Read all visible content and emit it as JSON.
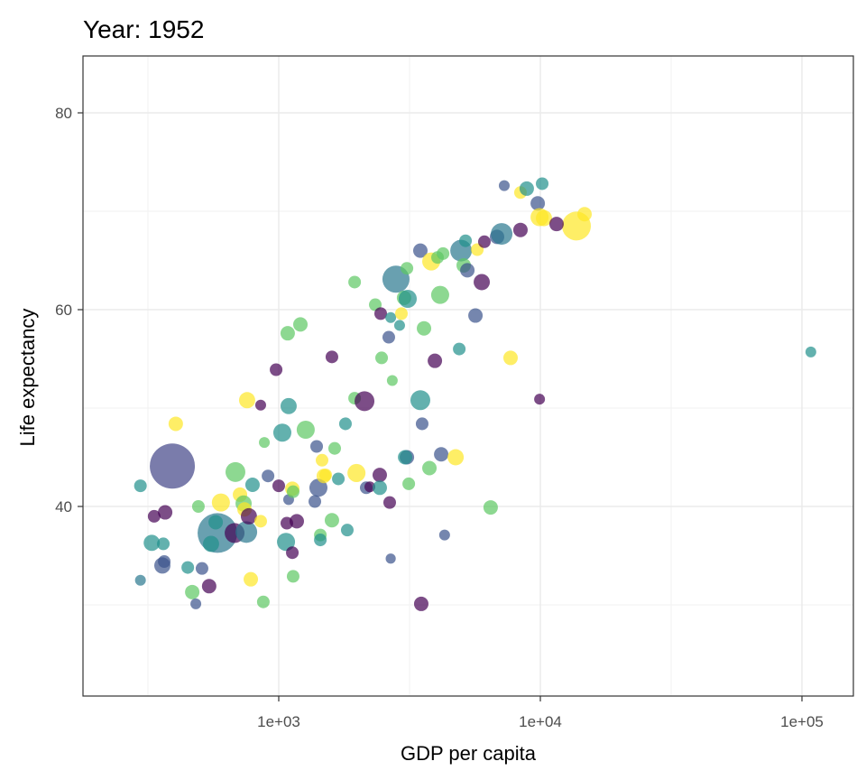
{
  "chart_data": {
    "type": "scatter",
    "title": "Year: 1952",
    "xlabel": "GDP per capita",
    "ylabel": "Life expectancy",
    "x_scale": "log10",
    "xlim": [
      180,
      160000
    ],
    "ylim": [
      25,
      85
    ],
    "x_ticks": [
      {
        "value": 1000,
        "label": "1e+03"
      },
      {
        "value": 10000,
        "label": "1e+04"
      },
      {
        "value": 100000,
        "label": "1e+05"
      }
    ],
    "y_ticks": [
      {
        "value": 40,
        "label": "40"
      },
      {
        "value": 60,
        "label": "60"
      },
      {
        "value": 80,
        "label": "80"
      }
    ],
    "grid": true,
    "legend": "none",
    "point_alpha": 0.7,
    "palette": {
      "P": "#440154",
      "I": "#414487",
      "B": "#3b528b",
      "C": "#2a788e",
      "T": "#21908c",
      "G": "#5dc863",
      "Y": "#fde725"
    },
    "point_fields": [
      "gdp_per_capita",
      "life_expectancy",
      "pop_millions",
      "color"
    ],
    "points": [
      [
        392,
        44.1,
        556,
        "I"
      ],
      [
        583,
        37.3,
        402,
        "C"
      ],
      [
        2806,
        63.1,
        139,
        "C"
      ],
      [
        13740,
        68.5,
        168,
        "Y"
      ],
      [
        296,
        42.1,
        5.6,
        "T"
      ],
      [
        296,
        32.5,
        1.4,
        "C"
      ],
      [
        334,
        39.0,
        5.6,
        "P"
      ],
      [
        368,
        39.4,
        12.5,
        "P"
      ],
      [
        327,
        36.3,
        22,
        "T"
      ],
      [
        362,
        36.2,
        5.6,
        "T"
      ],
      [
        365,
        34.4,
        5.6,
        "B"
      ],
      [
        359,
        34.0,
        22,
        "B"
      ],
      [
        404,
        48.4,
        12.5,
        "Y"
      ],
      [
        449,
        33.8,
        5.6,
        "T"
      ],
      [
        467,
        31.3,
        12.5,
        "G"
      ],
      [
        482,
        30.1,
        1.4,
        "B"
      ],
      [
        493,
        40.0,
        5.6,
        "G"
      ],
      [
        509,
        33.7,
        5.6,
        "B"
      ],
      [
        542,
        31.9,
        12.5,
        "P"
      ],
      [
        551,
        36.2,
        22,
        "T"
      ],
      [
        574,
        38.4,
        12.5,
        "T"
      ],
      [
        601,
        40.4,
        35,
        "Y"
      ],
      [
        683,
        43.5,
        50,
        "G"
      ],
      [
        678,
        37.3,
        50,
        "P"
      ],
      [
        752,
        37.4,
        68,
        "C"
      ],
      [
        711,
        41.2,
        12.5,
        "Y"
      ],
      [
        734,
        40.3,
        22,
        "G"
      ],
      [
        740,
        39.7,
        12.5,
        "Y"
      ],
      [
        769,
        39.0,
        22,
        "P"
      ],
      [
        757,
        50.8,
        22,
        "Y"
      ],
      [
        794,
        42.2,
        12.5,
        "T"
      ],
      [
        782,
        32.6,
        12.5,
        "Y"
      ],
      [
        853,
        50.3,
        1.4,
        "P"
      ],
      [
        853,
        38.5,
        5.6,
        "Y"
      ],
      [
        873,
        30.3,
        5.6,
        "G"
      ],
      [
        881,
        46.5,
        1.4,
        "G"
      ],
      [
        910,
        43.1,
        5.6,
        "B"
      ],
      [
        977,
        53.9,
        5.6,
        "P"
      ],
      [
        1000,
        42.1,
        5.6,
        "P"
      ],
      [
        1032,
        47.5,
        35,
        "T"
      ],
      [
        1091,
        50.2,
        22,
        "T"
      ],
      [
        1074,
        38.3,
        5.6,
        "P"
      ],
      [
        1066,
        36.4,
        35,
        "T"
      ],
      [
        1091,
        40.7,
        1.4,
        "B"
      ],
      [
        1127,
        41.8,
        12.5,
        "Y"
      ],
      [
        1135,
        41.5,
        5.6,
        "G"
      ],
      [
        1127,
        35.3,
        5.6,
        "P"
      ],
      [
        1172,
        38.5,
        12.5,
        "P"
      ],
      [
        1135,
        32.9,
        5.6,
        "G"
      ],
      [
        1082,
        57.6,
        12.5,
        "G"
      ],
      [
        1210,
        58.5,
        12.5,
        "G"
      ],
      [
        1268,
        47.8,
        35,
        "G"
      ],
      [
        1396,
        46.1,
        5.6,
        "B"
      ],
      [
        1374,
        40.5,
        5.6,
        "B"
      ],
      [
        1418,
        41.9,
        35,
        "B"
      ],
      [
        1442,
        37.1,
        5.6,
        "G"
      ],
      [
        1442,
        36.6,
        5.6,
        "T"
      ],
      [
        1487,
        43.1,
        12.5,
        "Y"
      ],
      [
        1464,
        44.7,
        5.6,
        "Y"
      ],
      [
        1511,
        43.2,
        5.6,
        "Y"
      ],
      [
        1597,
        55.2,
        5.6,
        "P"
      ],
      [
        1597,
        38.6,
        12.5,
        "G"
      ],
      [
        1636,
        45.9,
        5.6,
        "G"
      ],
      [
        1690,
        42.8,
        5.6,
        "T"
      ],
      [
        1799,
        48.4,
        5.6,
        "T"
      ],
      [
        1828,
        37.6,
        5.6,
        "T"
      ],
      [
        1950,
        62.8,
        5.6,
        "G"
      ],
      [
        1950,
        51.0,
        5.6,
        "G"
      ],
      [
        1982,
        43.4,
        35,
        "Y"
      ],
      [
        2127,
        50.7,
        50,
        "P"
      ],
      [
        2160,
        41.9,
        5.6,
        "B"
      ],
      [
        2230,
        42.0,
        1.4,
        "P"
      ],
      [
        2339,
        60.5,
        5.6,
        "G"
      ],
      [
        2453,
        59.6,
        5.6,
        "P"
      ],
      [
        2433,
        43.2,
        12.5,
        "P"
      ],
      [
        2433,
        41.9,
        12.5,
        "T"
      ],
      [
        2473,
        55.1,
        5.6,
        "G"
      ],
      [
        2634,
        57.2,
        5.6,
        "B"
      ],
      [
        2655,
        40.4,
        5.6,
        "P"
      ],
      [
        2679,
        34.7,
        0.5,
        "B"
      ],
      [
        2679,
        59.2,
        1.4,
        "T"
      ],
      [
        2717,
        52.8,
        1.4,
        "G"
      ],
      [
        2897,
        58.4,
        1.4,
        "T"
      ],
      [
        2944,
        59.6,
        5.6,
        "Y"
      ],
      [
        3013,
        61.2,
        12.5,
        "G"
      ],
      [
        3090,
        64.2,
        5.6,
        "G"
      ],
      [
        3112,
        61.1,
        35,
        "T"
      ],
      [
        3140,
        42.3,
        5.6,
        "G"
      ],
      [
        3090,
        45.0,
        12.5,
        "B"
      ],
      [
        3041,
        45.0,
        12.5,
        "T"
      ],
      [
        3478,
        66.0,
        12.5,
        "B"
      ],
      [
        3478,
        50.8,
        50,
        "T"
      ],
      [
        3533,
        48.4,
        5.6,
        "B"
      ],
      [
        3591,
        58.1,
        12.5,
        "G"
      ],
      [
        3505,
        30.1,
        12.5,
        "P"
      ],
      [
        3767,
        43.9,
        12.5,
        "G"
      ],
      [
        3828,
        64.9,
        35,
        "Y"
      ],
      [
        4046,
        65.3,
        5.6,
        "G"
      ],
      [
        4140,
        61.5,
        35,
        "G"
      ],
      [
        4178,
        45.3,
        12.5,
        "B"
      ],
      [
        4246,
        65.7,
        5.6,
        "G"
      ],
      [
        3952,
        54.8,
        12.5,
        "P"
      ],
      [
        4305,
        37.1,
        1.4,
        "B"
      ],
      [
        4745,
        45.0,
        22,
        "Y"
      ],
      [
        4898,
        56.0,
        5.6,
        "T"
      ],
      [
        4977,
        66.0,
        68,
        "C"
      ],
      [
        5093,
        64.5,
        12.5,
        "G"
      ],
      [
        5176,
        67.0,
        5.6,
        "T"
      ],
      [
        5260,
        64.0,
        12.5,
        "B"
      ],
      [
        5649,
        59.4,
        12.5,
        "B"
      ],
      [
        5741,
        66.1,
        5.6,
        "Y"
      ],
      [
        5970,
        62.8,
        22,
        "P"
      ],
      [
        6457,
        39.9,
        12.5,
        "G"
      ],
      [
        6110,
        66.9,
        5.6,
        "P"
      ],
      [
        6830,
        67.4,
        12.5,
        "B"
      ],
      [
        7112,
        67.7,
        68,
        "C"
      ],
      [
        7694,
        55.1,
        12.5,
        "Y"
      ],
      [
        8395,
        68.1,
        12.5,
        "P"
      ],
      [
        7278,
        72.6,
        1.4,
        "B"
      ],
      [
        8395,
        71.9,
        5.6,
        "Y"
      ],
      [
        8872,
        72.3,
        12.5,
        "T"
      ],
      [
        9772,
        70.8,
        12.5,
        "B"
      ],
      [
        9931,
        50.9,
        1.4,
        "P"
      ],
      [
        9931,
        69.4,
        35,
        "Y"
      ],
      [
        10162,
        72.8,
        5.6,
        "T"
      ],
      [
        10322,
        69.3,
        22,
        "Y"
      ],
      [
        11534,
        68.7,
        12.5,
        "P"
      ],
      [
        14757,
        69.7,
        12.5,
        "Y"
      ],
      [
        108143,
        55.7,
        1.4,
        "T"
      ]
    ]
  }
}
